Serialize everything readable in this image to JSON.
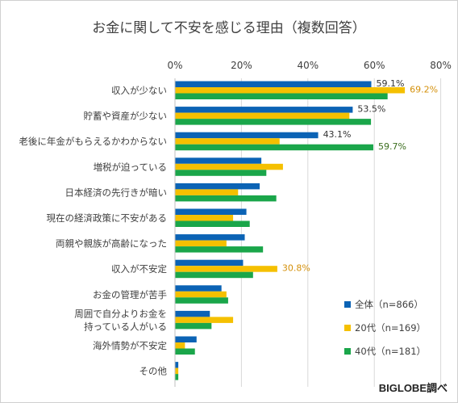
{
  "chart_data": {
    "type": "bar",
    "orientation": "horizontal",
    "title": "お金に関して不安を感じる理由（複数回答）",
    "categories": [
      "収入が少ない",
      "貯蓄や資産が少ない",
      "老後に年金がもらえるかわからない",
      "増税が迫っている",
      "日本経済の先行きが暗い",
      "現在の経済政策に不安がある",
      "両親や親族が高齢になった",
      "収入が不安定",
      "お金の管理が苦手",
      "周囲で自分よりお金を\n持っている人がいる",
      "海外情勢が不安定",
      "その他"
    ],
    "series": [
      {
        "name": "全体（n=866）",
        "color": "#0b63b5",
        "values": [
          59.1,
          53.5,
          43.1,
          26.0,
          25.5,
          21.5,
          21.0,
          20.5,
          14.0,
          10.5,
          6.5,
          1.0
        ],
        "labels": [
          "59.1%",
          "53.5%",
          "43.1%",
          "",
          "",
          "",
          "",
          "",
          "",
          "",
          "",
          ""
        ]
      },
      {
        "name": "20代（n=169）",
        "color": "#f5c000",
        "values": [
          69.2,
          52.5,
          31.5,
          32.5,
          19.0,
          17.5,
          15.5,
          30.8,
          15.5,
          17.5,
          3.0,
          1.0
        ],
        "labels": [
          "69.2%",
          "",
          "",
          "",
          "",
          "",
          "",
          "30.8%",
          "",
          "",
          "",
          ""
        ]
      },
      {
        "name": "40代（n=181）",
        "color": "#1aa64a",
        "values": [
          64.0,
          59.0,
          59.7,
          27.5,
          30.5,
          22.5,
          26.5,
          23.5,
          16.0,
          11.0,
          6.0,
          1.0
        ],
        "labels": [
          "",
          "",
          "59.7%",
          "",
          "",
          "",
          "",
          "",
          "",
          "",
          "",
          ""
        ]
      }
    ],
    "xlim": [
      0,
      80
    ],
    "xticks": [
      "0%",
      "20%",
      "40%",
      "60%",
      "80%"
    ],
    "grid": true,
    "legend": "bottom-right"
  },
  "label_colors": [
    "#333333",
    "#d4900a",
    "#3b6e1e"
  ],
  "source": "BIGLOBE調べ"
}
